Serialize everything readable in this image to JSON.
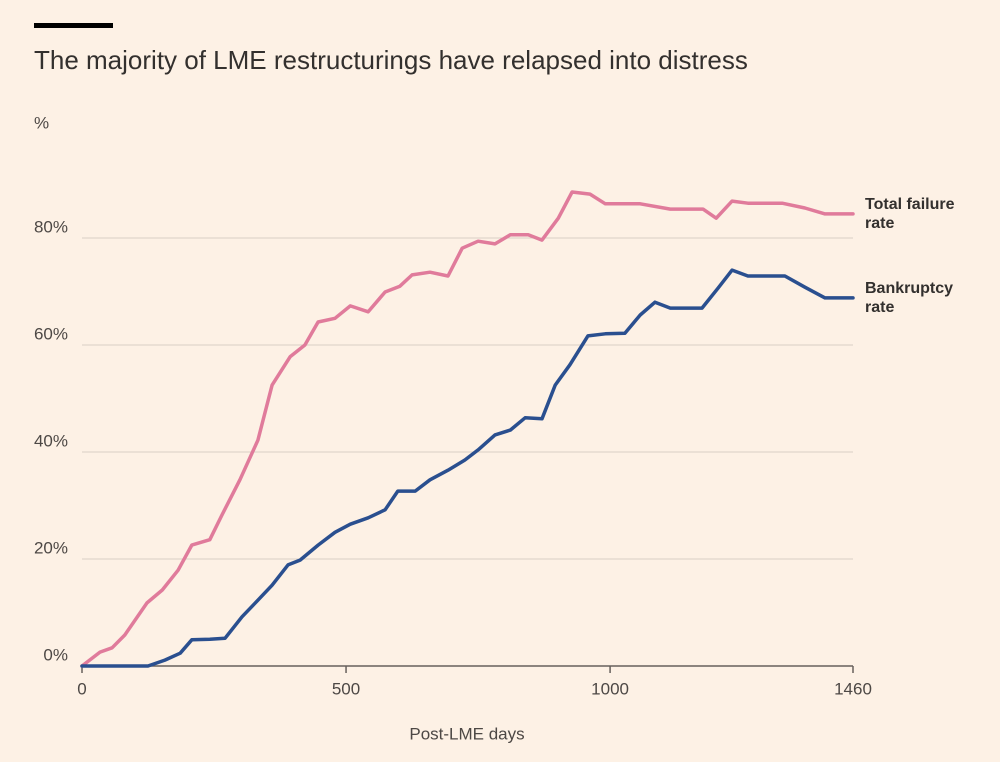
{
  "chart_data": {
    "type": "line",
    "title": "The majority of LME restructurings have relapsed into distress",
    "y_label": "%",
    "x_label": "Post-LME days",
    "xlim": [
      0,
      1460
    ],
    "xticks": [
      0,
      500,
      1000,
      1460
    ],
    "ylim": [
      0,
      100
    ],
    "yticks": [
      {
        "value": 0,
        "label": "0%"
      },
      {
        "value": 20,
        "label": "20%"
      },
      {
        "value": 40,
        "label": "40%"
      },
      {
        "value": 60,
        "label": "60%"
      },
      {
        "value": 80,
        "label": "80%"
      }
    ],
    "grid": true,
    "series": [
      {
        "name": "Total failure rate",
        "color": "#e07b9b",
        "x": [
          0,
          34,
          57,
          81,
          123,
          152,
          182,
          208,
          242,
          265,
          299,
          333,
          360,
          394,
          422,
          447,
          479,
          508,
          542,
          574,
          602,
          625,
          659,
          693,
          720,
          750,
          782,
          811,
          845,
          871,
          902,
          928,
          962,
          991,
          1057,
          1114,
          1176,
          1201,
          1231,
          1261,
          1326,
          1369,
          1407,
          1460
        ],
        "values": [
          0,
          2.6,
          3.4,
          5.8,
          11.8,
          14.2,
          17.9,
          22.6,
          23.6,
          28.2,
          34.8,
          42.2,
          52.5,
          57.8,
          60,
          64.3,
          65,
          67.3,
          66.2,
          69.9,
          71,
          73.1,
          73.6,
          72.9,
          78.1,
          79.4,
          78.9,
          80.6,
          80.6,
          79.6,
          83.7,
          88.6,
          88.2,
          86.4,
          86.4,
          85.4,
          85.4,
          83.7,
          86.9,
          86.5,
          86.5,
          85.6,
          84.5,
          84.5
        ]
      },
      {
        "name": "Bankruptcy rate",
        "color": "#2a4f8f",
        "x": [
          0,
          125,
          157,
          186,
          208,
          242,
          271,
          303,
          333,
          360,
          390,
          413,
          447,
          479,
          508,
          542,
          574,
          598,
          631,
          659,
          693,
          725,
          750,
          782,
          811,
          839,
          871,
          896,
          924,
          958,
          991,
          1028,
          1057,
          1085,
          1114,
          1174,
          1205,
          1231,
          1261,
          1331,
          1369,
          1407,
          1460
        ],
        "values": [
          0,
          0,
          1.1,
          2.4,
          4.9,
          5,
          5.2,
          9.2,
          12.3,
          15.1,
          18.9,
          19.8,
          22.6,
          25,
          26.5,
          27.7,
          29.2,
          32.7,
          32.7,
          34.8,
          36.6,
          38.5,
          40.4,
          43.2,
          44.1,
          46.4,
          46.2,
          52.5,
          56.3,
          61.7,
          62.1,
          62.2,
          65.6,
          68,
          66.9,
          66.9,
          70.7,
          74,
          72.9,
          72.9,
          70.8,
          68.8,
          68.8
        ]
      }
    ]
  }
}
